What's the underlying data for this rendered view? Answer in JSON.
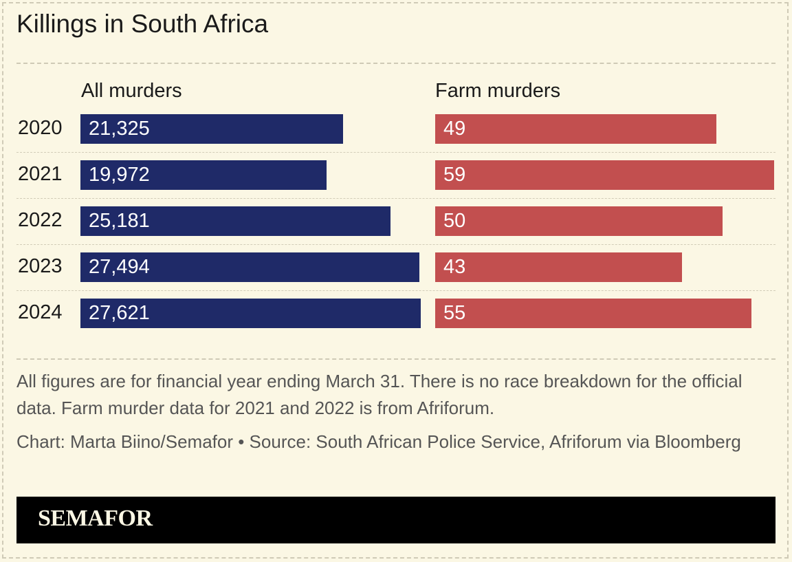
{
  "title": "Killings in South Africa",
  "chart_data": {
    "type": "bar",
    "orientation": "horizontal",
    "categories": [
      "2020",
      "2021",
      "2022",
      "2023",
      "2024"
    ],
    "series": [
      {
        "name": "All murders",
        "values": [
          21325,
          19972,
          25181,
          27494,
          27621
        ],
        "labels": [
          "21,325",
          "19,972",
          "25,181",
          "27,494",
          "27,621"
        ],
        "color": "#1f2a68"
      },
      {
        "name": "Farm murders",
        "values": [
          49,
          59,
          50,
          43,
          55
        ],
        "labels": [
          "49",
          "59",
          "50",
          "43",
          "55"
        ],
        "color": "#c24f4f"
      }
    ]
  },
  "notes": "All figures are for financial year ending March 31. There is no race breakdown for the official data. Farm murder data for 2021 and 2022 is from Afriforum.",
  "source": "Chart: Marta Biino/Semafor • Source: South African Police Service, Afriforum via Bloomberg",
  "brand": "SEMAFOR",
  "colors": {
    "background": "#fbf7e4",
    "footer": "#000000"
  }
}
